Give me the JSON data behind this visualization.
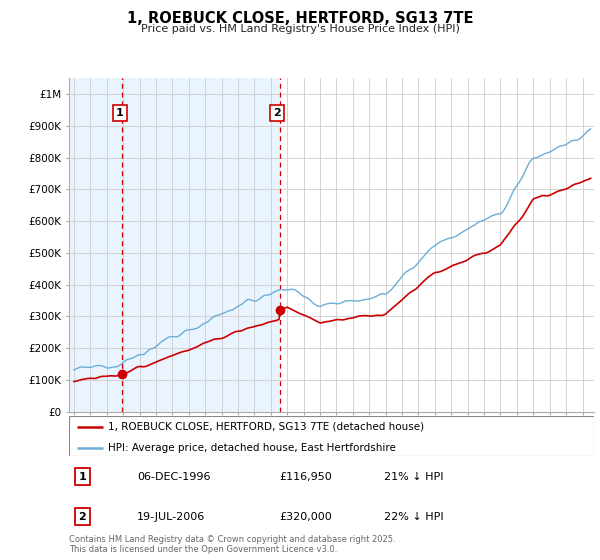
{
  "title": "1, ROEBUCK CLOSE, HERTFORD, SG13 7TE",
  "subtitle": "Price paid vs. HM Land Registry's House Price Index (HPI)",
  "y_ticks": [
    0,
    100000,
    200000,
    300000,
    400000,
    500000,
    600000,
    700000,
    800000,
    900000,
    1000000
  ],
  "y_tick_labels": [
    "£0",
    "£100K",
    "£200K",
    "£300K",
    "£400K",
    "£500K",
    "£600K",
    "£700K",
    "£800K",
    "£900K",
    "£1M"
  ],
  "ylim": [
    0,
    1050000
  ],
  "xlim_start": 1993.7,
  "xlim_end": 2025.7,
  "sale1_x": 1996.93,
  "sale1_y": 116950,
  "sale1_label": "1",
  "sale2_x": 2006.55,
  "sale2_y": 320000,
  "sale2_label": "2",
  "sale_color": "#cc0000",
  "hpi_color": "#6baed6",
  "hpi_fill_color": "#ddeeff",
  "background_color": "#ffffff",
  "grid_color": "#cccccc",
  "legend_line1": "1, ROEBUCK CLOSE, HERTFORD, SG13 7TE (detached house)",
  "legend_line2": "HPI: Average price, detached house, East Hertfordshire",
  "footer": "Contains HM Land Registry data © Crown copyright and database right 2025.\nThis data is licensed under the Open Government Licence v3.0.",
  "table_rows": [
    {
      "num": "1",
      "date": "06-DEC-1996",
      "price": "£116,950",
      "change": "21% ↓ HPI"
    },
    {
      "num": "2",
      "date": "19-JUL-2006",
      "price": "£320,000",
      "change": "22% ↓ HPI"
    }
  ]
}
